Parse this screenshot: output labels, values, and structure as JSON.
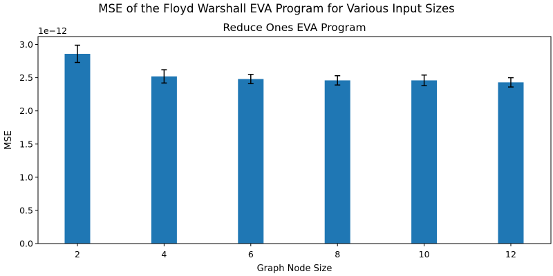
{
  "chart_data": {
    "type": "bar",
    "title": "MSE of the Floyd Warshall EVA Program for Various Input Sizes",
    "subtitle": "Reduce Ones EVA Program",
    "xlabel": "Graph Node Size",
    "ylabel": "MSE",
    "offset_text": "1e−12",
    "categories": [
      "2",
      "4",
      "6",
      "8",
      "10",
      "12"
    ],
    "values": [
      2.86,
      2.52,
      2.48,
      2.46,
      2.46,
      2.43
    ],
    "errors": [
      0.13,
      0.1,
      0.07,
      0.07,
      0.08,
      0.07
    ],
    "value_scale": 1e-12,
    "ylim": [
      0,
      3.12
    ],
    "yticks": [
      "0.0",
      "0.5",
      "1.0",
      "1.5",
      "2.0",
      "2.5",
      "3.0"
    ],
    "bar_color": "#1f77b4",
    "error_color": "#000000",
    "grid": false
  }
}
